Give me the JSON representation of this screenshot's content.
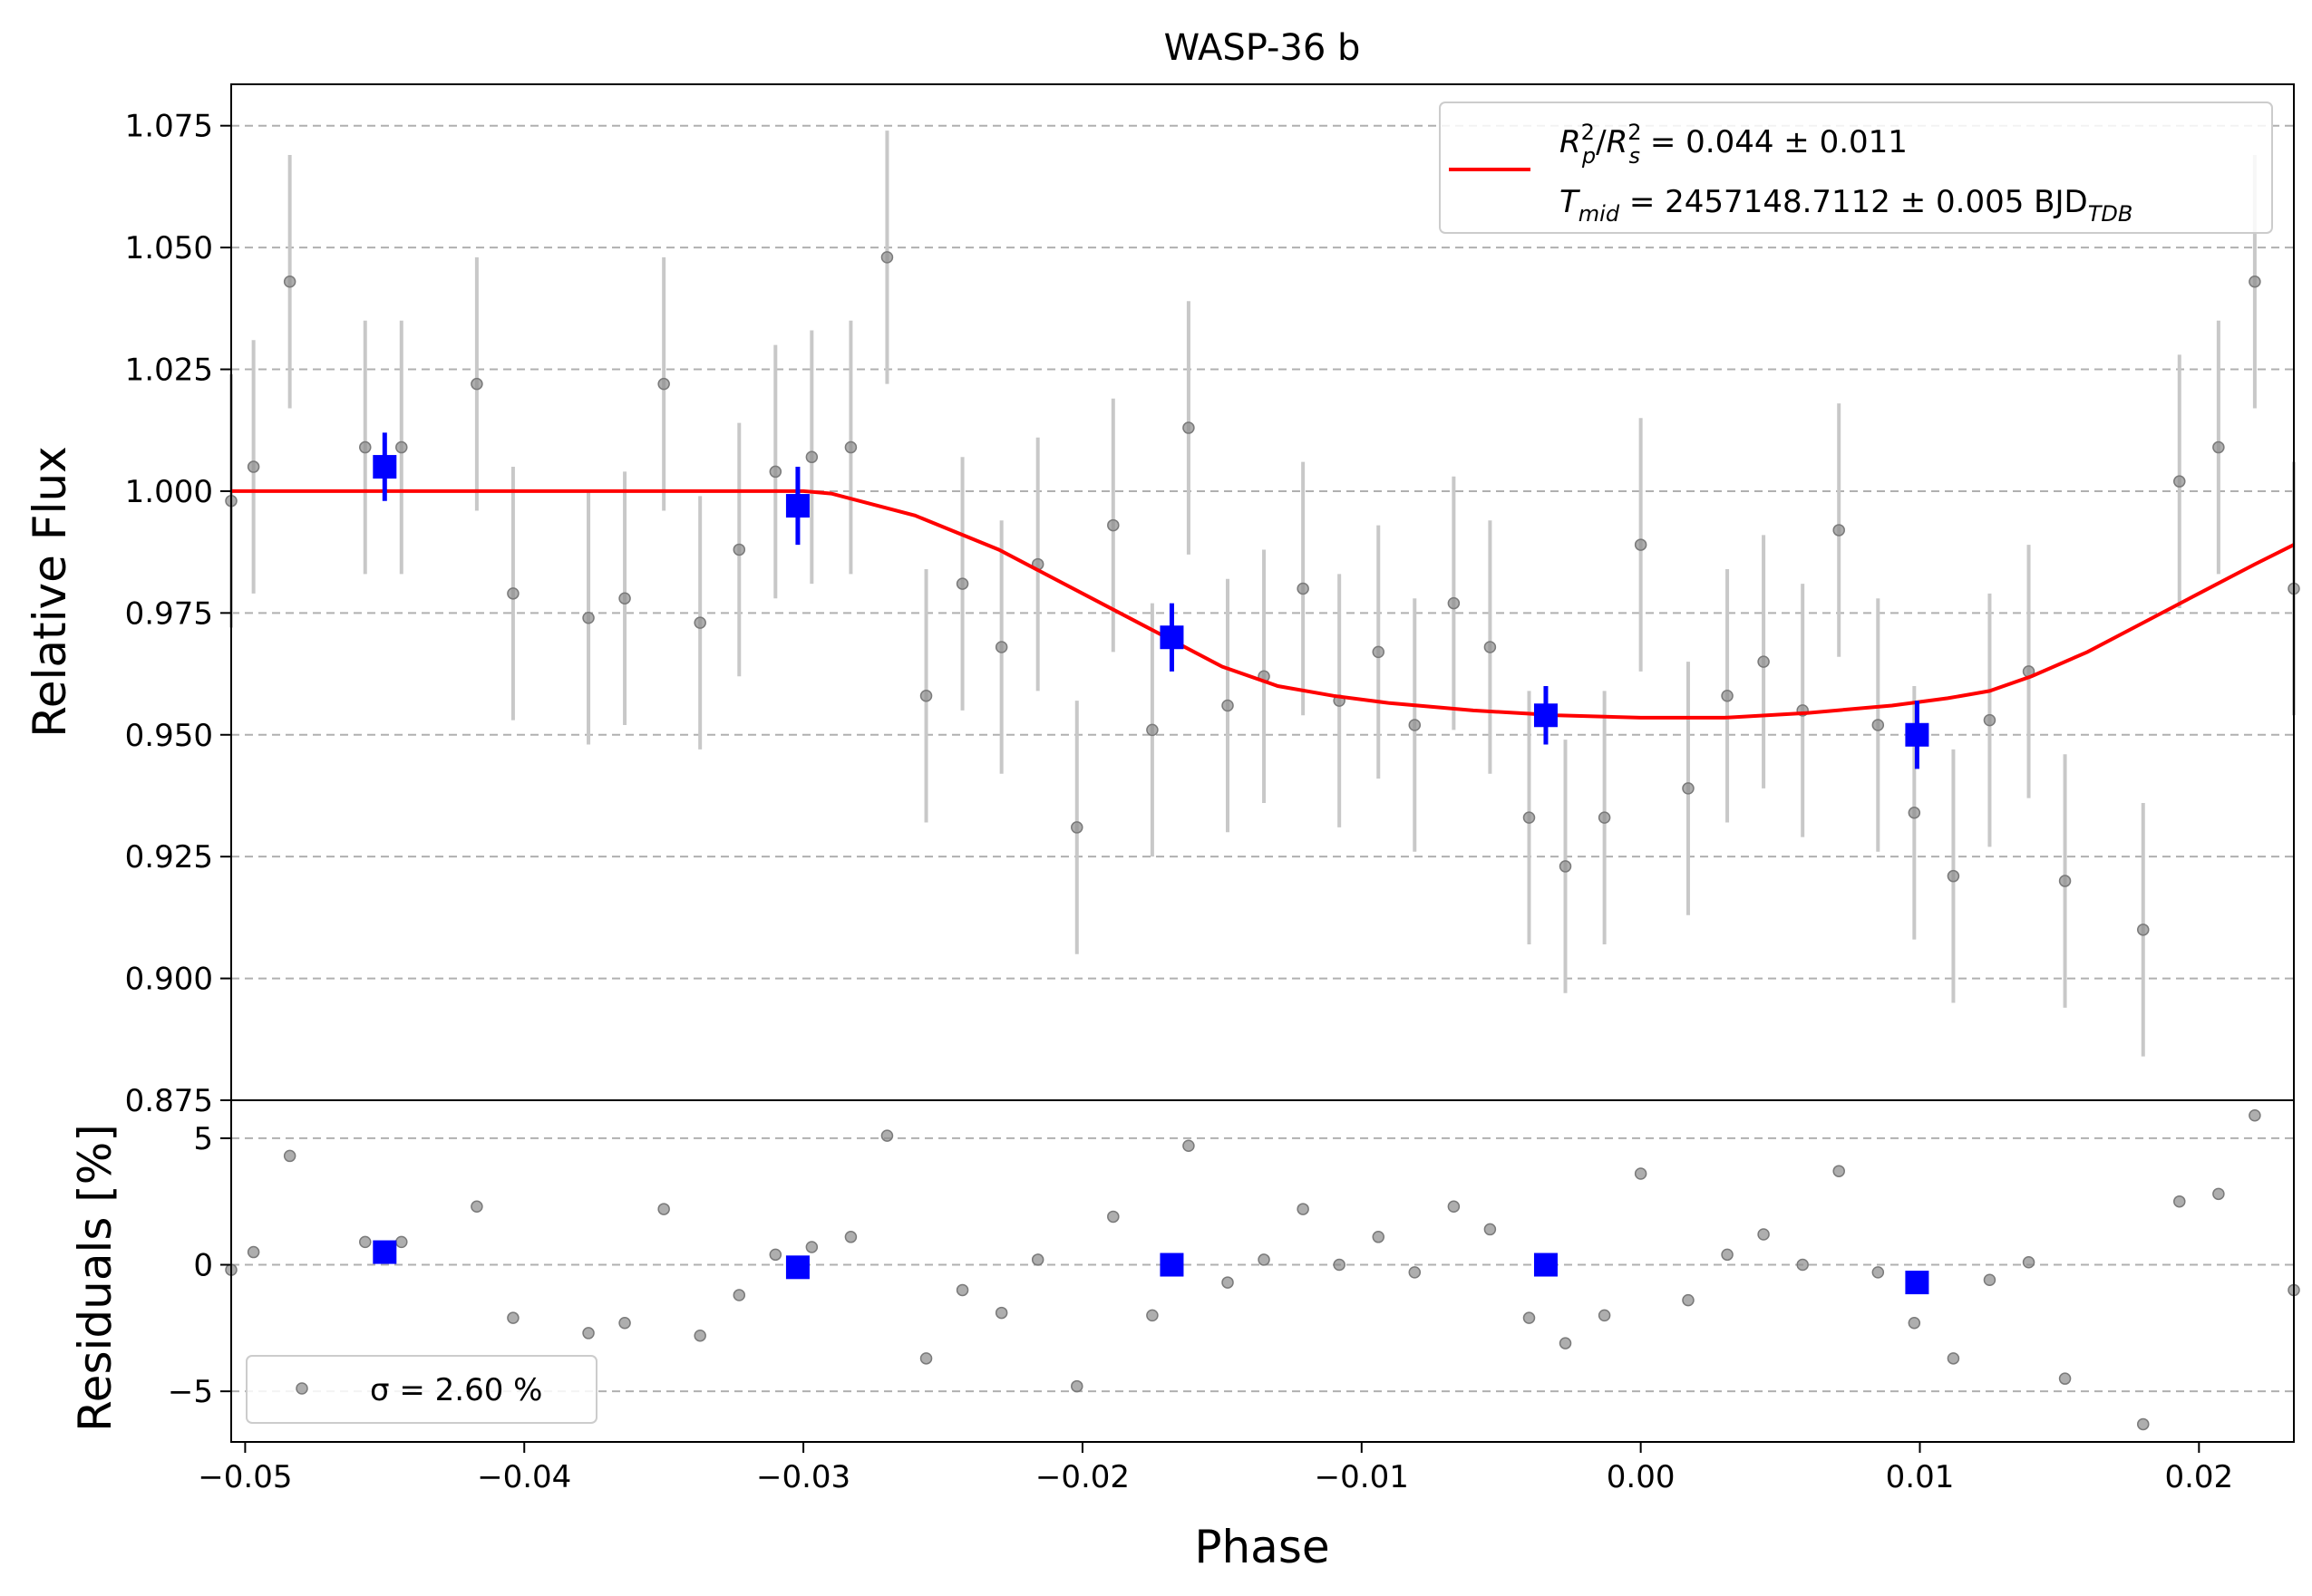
{
  "chart_data": {
    "type": "scatter",
    "title": "WASP-36 b",
    "xlabel": "Phase",
    "x_ticks": [
      -0.05,
      -0.04,
      -0.03,
      -0.02,
      -0.01,
      0.0,
      0.01,
      0.02
    ],
    "x_tick_labels": [
      "−0.05",
      "−0.04",
      "−0.03",
      "−0.02",
      "−0.01",
      "0.00",
      "0.01",
      "0.02"
    ],
    "xlim": [
      -0.0505,
      0.0234
    ],
    "main_panel": {
      "ylabel": "Relative Flux",
      "ylim": [
        0.875,
        1.0835
      ],
      "y_ticks": [
        0.875,
        0.9,
        0.925,
        0.95,
        0.975,
        1.0,
        1.025,
        1.05,
        1.075
      ],
      "y_tick_labels": [
        "0.875",
        "0.900",
        "0.925",
        "0.950",
        "0.975",
        "1.000",
        "1.025",
        "1.050",
        "1.075"
      ],
      "grid": "horizontal dashed",
      "data_points": {
        "x": [
          -0.0505,
          -0.0497,
          -0.0484,
          -0.0457,
          -0.0444,
          -0.0417,
          -0.0404,
          -0.0377,
          -0.0364,
          -0.035,
          -0.0337,
          -0.0323,
          -0.031,
          -0.0297,
          -0.0283,
          -0.027,
          -0.0256,
          -0.0243,
          -0.0229,
          -0.0216,
          -0.0202,
          -0.0189,
          -0.0175,
          -0.0162,
          -0.0148,
          -0.0135,
          -0.0121,
          -0.0108,
          -0.0094,
          -0.0081,
          -0.0067,
          -0.0054,
          -0.004,
          -0.0027,
          -0.0013,
          0.0,
          0.0017,
          0.0031,
          0.0044,
          0.0058,
          0.0071,
          0.0085,
          0.0098,
          0.0112,
          0.0125,
          0.0139,
          0.0152,
          0.018,
          0.0193,
          0.0207,
          0.022,
          0.0234
        ],
        "y": [
          0.998,
          1.005,
          1.043,
          1.009,
          1.009,
          1.022,
          0.979,
          0.974,
          0.978,
          1.022,
          0.973,
          0.988,
          1.004,
          1.007,
          1.009,
          1.048,
          0.958,
          0.981,
          0.968,
          0.985,
          0.931,
          0.993,
          0.951,
          1.013,
          0.956,
          0.962,
          0.98,
          0.957,
          0.967,
          0.952,
          0.977,
          0.968,
          0.933,
          0.923,
          0.933,
          0.989,
          0.939,
          0.958,
          0.965,
          0.955,
          0.992,
          0.952,
          0.934,
          0.921,
          0.953,
          0.963,
          0.92,
          0.91,
          1.002,
          1.009,
          1.043,
          0.98
        ],
        "yerr": 0.026
      },
      "binned_points": {
        "x": [
          -0.045,
          -0.0302,
          -0.0168,
          -0.0034,
          0.0099
        ],
        "y": [
          1.005,
          0.997,
          0.97,
          0.954,
          0.95
        ],
        "yerr": [
          0.007,
          0.008,
          0.007,
          0.006,
          0.007
        ]
      },
      "model": {
        "label_line1": "R²p/R²s = 0.044 ± 0.011",
        "label_line2": "Tmid = 2457148.7112 ± 0.005 BJD_TDB",
        "rp2_rs2": 0.044,
        "rp2_rs2_err": 0.011,
        "tmid": 2457148.7112,
        "tmid_err": 0.005,
        "x": [
          -0.0505,
          -0.03,
          -0.029,
          -0.026,
          -0.023,
          -0.02,
          -0.017,
          -0.015,
          -0.013,
          -0.011,
          -0.009,
          -0.006,
          -0.003,
          0.0,
          0.003,
          0.006,
          0.009,
          0.011,
          0.0125,
          0.014,
          0.016,
          0.018,
          0.02,
          0.022,
          0.0234
        ],
        "y": [
          1.0,
          1.0,
          0.9995,
          0.995,
          0.988,
          0.979,
          0.97,
          0.964,
          0.96,
          0.958,
          0.9565,
          0.955,
          0.954,
          0.9535,
          0.9535,
          0.9545,
          0.956,
          0.9575,
          0.959,
          0.962,
          0.967,
          0.973,
          0.979,
          0.985,
          0.989
        ],
        "color": "#ff0000"
      },
      "legend_position": "top-right"
    },
    "residual_panel": {
      "ylabel": "Residuals [%]",
      "ylim": [
        -7.0,
        6.5
      ],
      "y_ticks": [
        -5,
        0,
        5
      ],
      "y_tick_labels": [
        "−5",
        "0",
        "5"
      ],
      "grid": "horizontal dashed",
      "residuals": [
        -0.2,
        0.5,
        4.3,
        0.9,
        0.9,
        2.3,
        -2.1,
        -2.7,
        -2.3,
        2.2,
        -2.8,
        -1.2,
        0.4,
        0.7,
        1.1,
        5.1,
        -3.7,
        -1.0,
        -1.9,
        0.2,
        -4.8,
        1.9,
        -2.0,
        4.7,
        -0.7,
        0.2,
        2.2,
        0.0,
        1.1,
        -0.3,
        2.3,
        1.4,
        -2.1,
        -3.1,
        -2.0,
        3.6,
        -1.4,
        0.4,
        1.2,
        0.0,
        3.7,
        -0.3,
        -2.3,
        -3.7,
        -0.6,
        0.1,
        -4.5,
        -6.3,
        2.5,
        2.8,
        5.9,
        -1.0
      ],
      "binned_residuals": [
        0.5,
        -0.1,
        0.0,
        0.0,
        -0.7
      ],
      "legend_label": "σ = 2.60 %",
      "sigma": 2.6,
      "legend_position": "bottom-left"
    },
    "colors": {
      "data_points": "#8c8c8c",
      "error_bars": "#c8c8c8",
      "binned": "#0000ff",
      "model": "#ff0000",
      "grid": "#b0b0b0"
    }
  }
}
